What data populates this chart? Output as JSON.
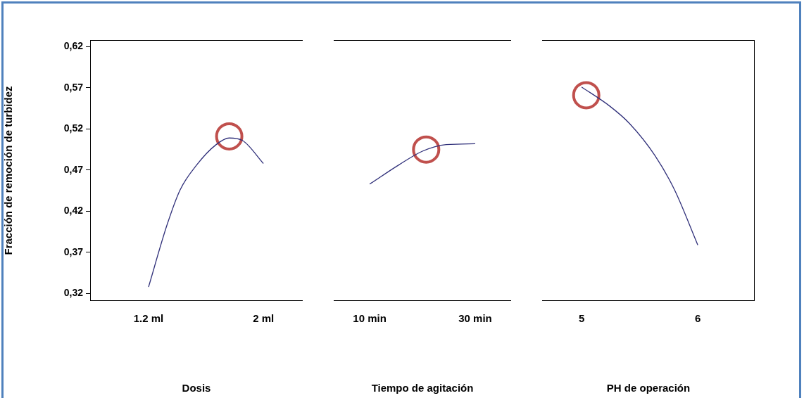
{
  "chart_data": [
    {
      "type": "line",
      "xlabel": "Dosis",
      "ylabel": "Fracción de remoción de turbidez",
      "xlim": [
        0.793,
        2.274
      ],
      "xticks": [
        {
          "value": 1.2,
          "label": "1.2 ml"
        },
        {
          "value": 2,
          "label": "2 ml"
        }
      ],
      "ylim": [
        0.311,
        0.628
      ],
      "yticks": [
        {
          "value": 0.32,
          "label": "0,32"
        },
        {
          "value": 0.37,
          "label": "0,37"
        },
        {
          "value": 0.42,
          "label": "0,42"
        },
        {
          "value": 0.47,
          "label": "0,47"
        },
        {
          "value": 0.52,
          "label": "0,52"
        },
        {
          "value": 0.57,
          "label": "0,57"
        },
        {
          "value": 0.62,
          "label": "0,62"
        }
      ],
      "marker": "none",
      "series": [
        {
          "type": "line",
          "color": "#30307a",
          "x": [
            1.2,
            1.328,
            1.42,
            1.534,
            1.671,
            1.762,
            1.854,
            2.0
          ],
          "values": [
            0.328,
            0.403,
            0.446,
            0.476,
            0.501,
            0.509,
            0.506,
            0.478
          ]
        },
        {
          "type": "scatter",
          "marker": "circle",
          "color": "#c0504d",
          "x": [
            1.762
          ],
          "values": [
            0.511
          ]
        }
      ]
    },
    {
      "type": "line",
      "xlabel": "Tiempo de agitación",
      "xlim": [
        3.18,
        36.8
      ],
      "xticks": [
        {
          "value": 10,
          "label": "10 min"
        },
        {
          "value": 30,
          "label": "30 min"
        }
      ],
      "ylim": [
        0.311,
        0.628
      ],
      "tick_labels": "x",
      "marker": "none",
      "series": [
        {
          "type": "line",
          "color": "#30307a",
          "x": [
            10,
            15.45,
            20,
            24.5,
            30
          ],
          "values": [
            0.453,
            0.476,
            0.493,
            0.501,
            0.502
          ]
        },
        {
          "type": "scatter",
          "marker": "circle",
          "color": "#c0504d",
          "x": [
            20.7
          ],
          "values": [
            0.495
          ]
        }
      ]
    },
    {
      "type": "line",
      "xlabel": "PH de operación",
      "xlim": [
        4.66,
        6.49
      ],
      "xticks": [
        5,
        6
      ],
      "ylim": [
        0.311,
        0.628
      ],
      "tick_labels": "x",
      "marker": "none",
      "series": [
        {
          "type": "line",
          "color": "#30307a",
          "x": [
            5,
            5.24,
            5.41,
            5.63,
            5.8,
            6
          ],
          "values": [
            0.571,
            0.548,
            0.527,
            0.488,
            0.446,
            0.379
          ]
        },
        {
          "type": "scatter",
          "marker": "circle",
          "color": "#c0504d",
          "x": [
            5.04
          ],
          "values": [
            0.561
          ]
        }
      ]
    }
  ]
}
